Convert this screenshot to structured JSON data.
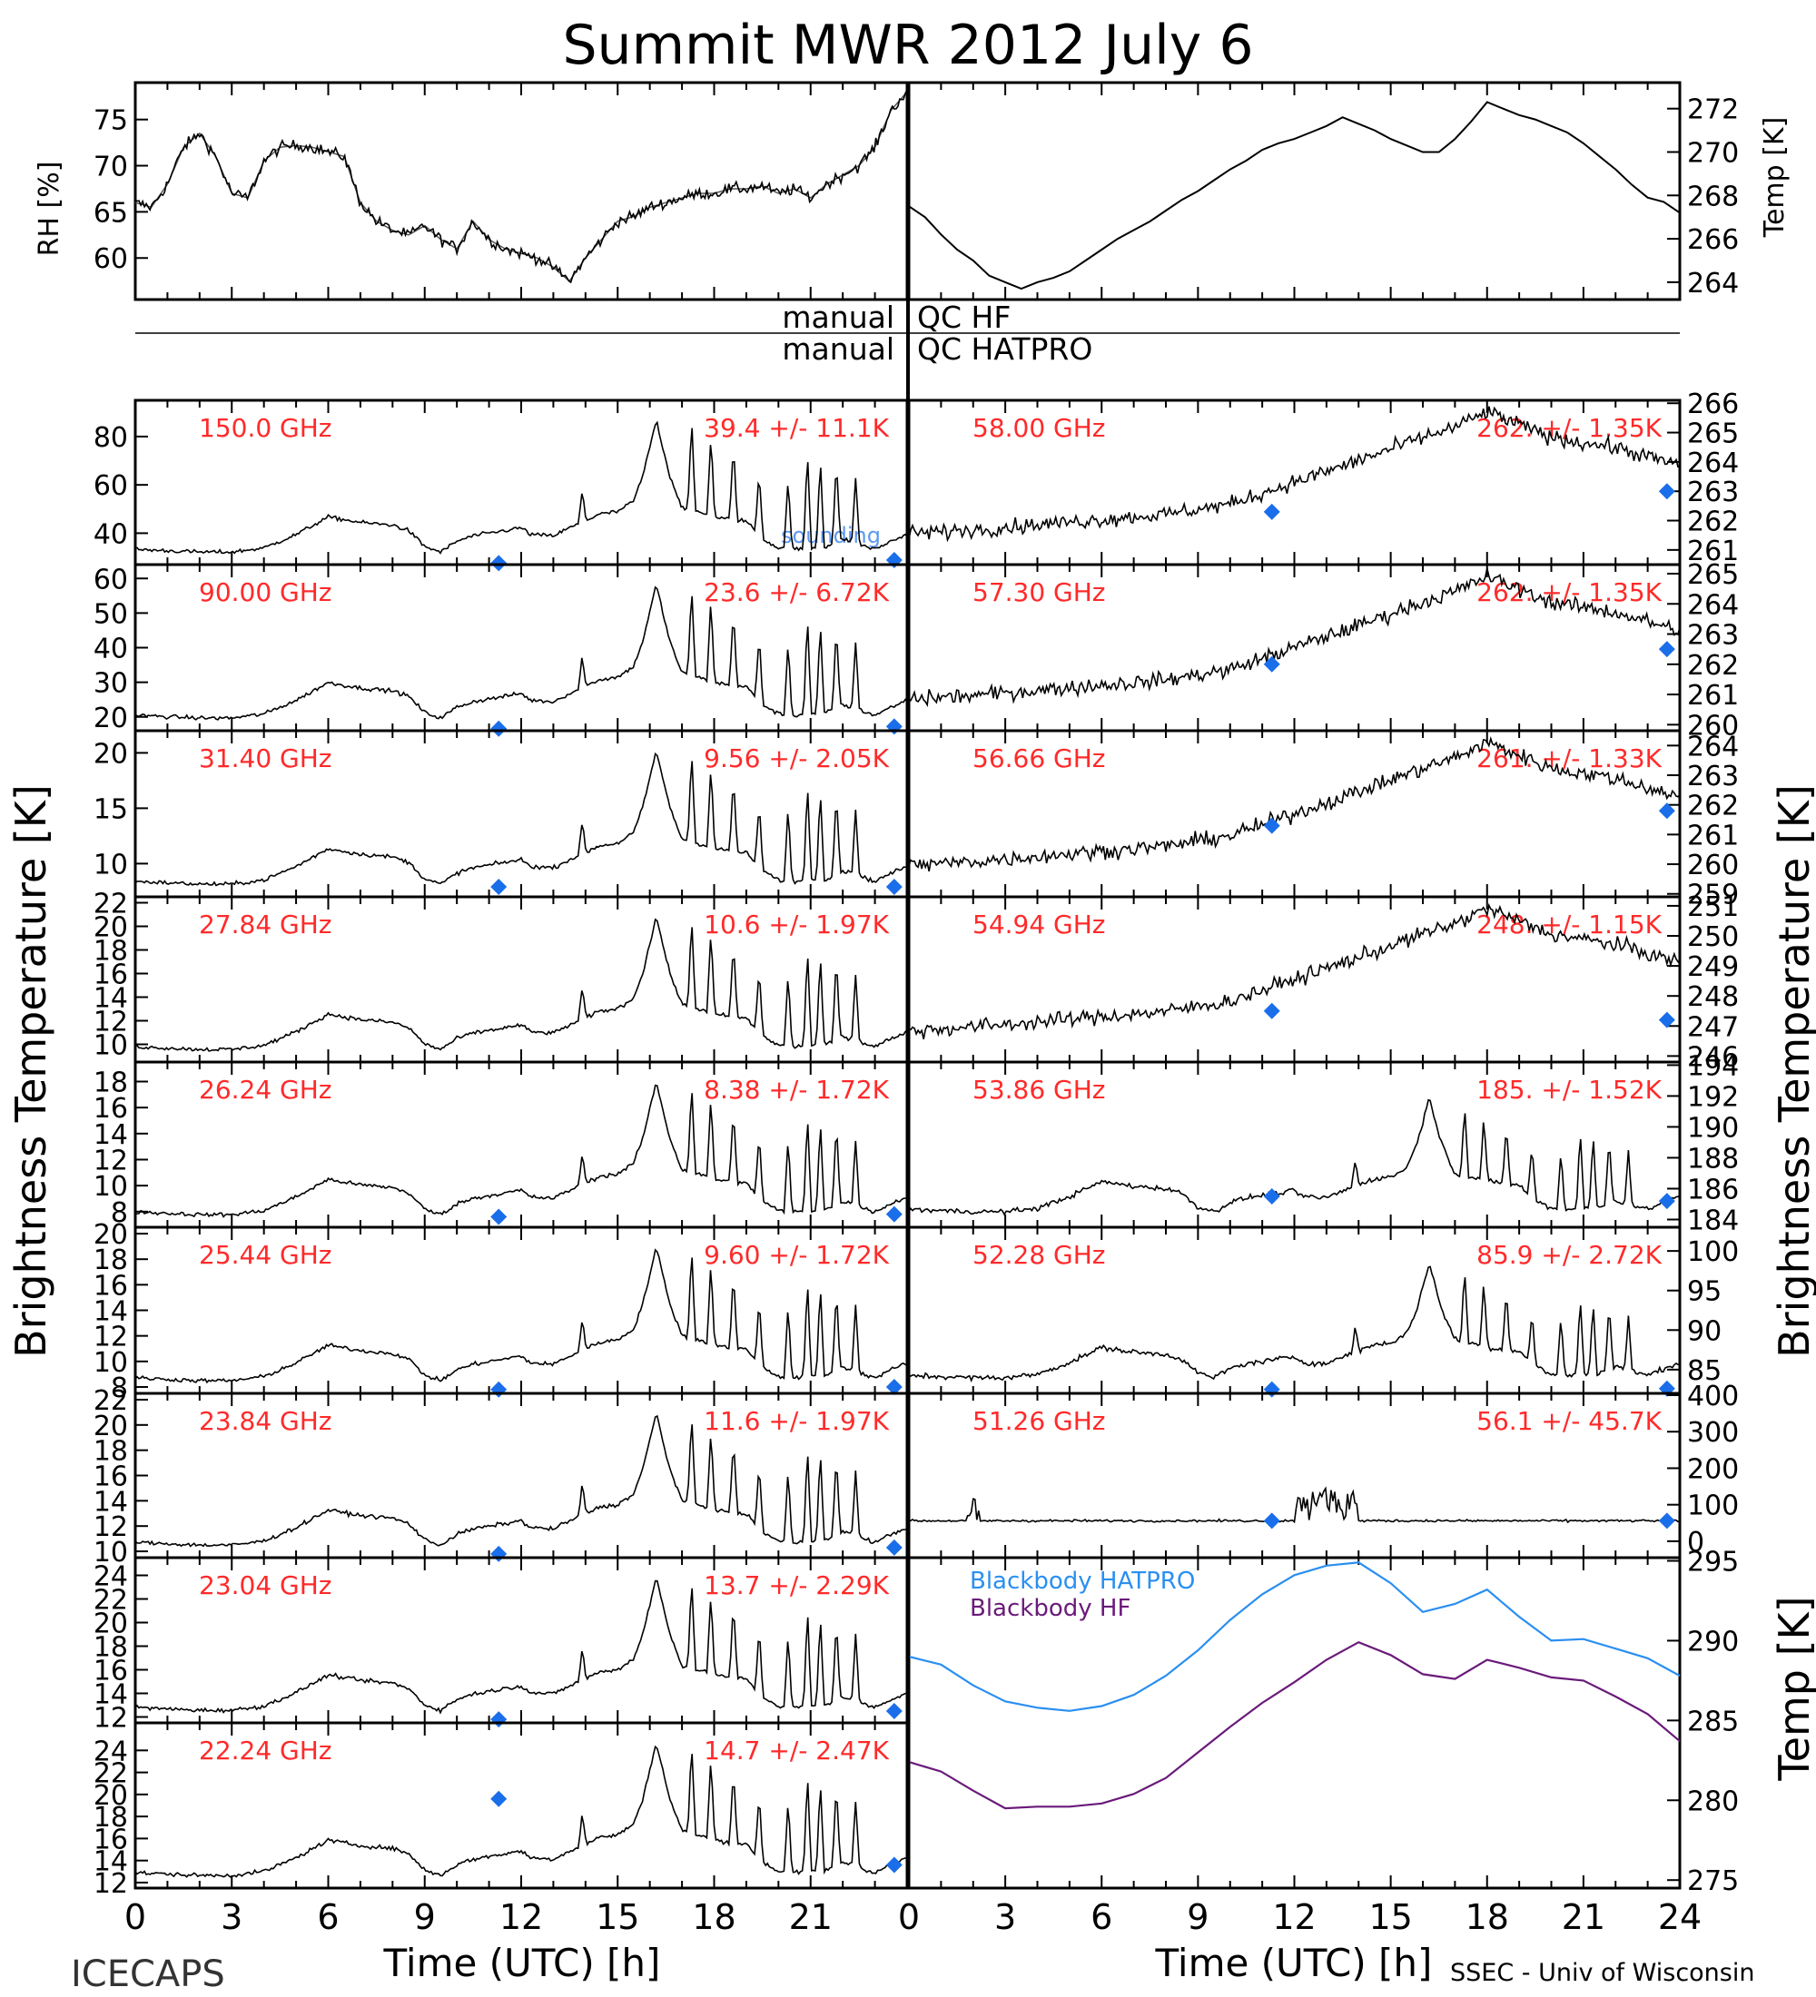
{
  "title": "Summit MWR 2012 July  6",
  "footer": {
    "left": "ICECAPS",
    "right": "SSEC - Univ of Wisconsin"
  },
  "colors": {
    "freq_label": "#ff2a2a",
    "sounding": "#1a6eea",
    "bb_hatpro": "#2a8ff0",
    "bb_hf": "#6a1a7a",
    "trace": "#000000"
  },
  "qc": {
    "hf_left": "manual",
    "hf_right": "QC HF",
    "hatpro_left": "manual",
    "hatpro_right": "QC HATPRO"
  },
  "axes": {
    "rh_label": "RH [%]",
    "temp_label": "Temp [K]",
    "tb_label": "Brightness Temperature [K]",
    "bb_temp_label": "Temp [K]",
    "xlabel": "Time (UTC) [h]",
    "left_xticks": [
      "0",
      "3",
      "6",
      "9",
      "12",
      "15",
      "18",
      "21"
    ],
    "right_xticks": [
      "0",
      "3",
      "6",
      "9",
      "12",
      "15",
      "18",
      "21",
      "24"
    ],
    "sounding_legend": "sounding"
  },
  "chart_data": [
    {
      "type": "line",
      "name_key": "rh",
      "ylabel": "RH [%]",
      "xlim": [
        0,
        24
      ],
      "ylim": [
        55.5,
        79
      ],
      "yticks": [
        "60",
        "65",
        "70",
        "75"
      ],
      "x": [
        0,
        0.5,
        1,
        1.5,
        2,
        2.5,
        3,
        3.5,
        4,
        4.5,
        5,
        5.5,
        6,
        6.5,
        7,
        7.5,
        8,
        8.5,
        9,
        9.5,
        10,
        10.5,
        11,
        11.5,
        12,
        12.5,
        13,
        13.5,
        14,
        14.5,
        15,
        15.5,
        16,
        16.5,
        17,
        17.5,
        18,
        18.5,
        19,
        19.5,
        20,
        20.5,
        21,
        21.5,
        22,
        22.5,
        23,
        23.5,
        24
      ],
      "y": [
        66,
        65.5,
        68,
        72,
        73.5,
        71,
        67,
        66.5,
        70.5,
        72,
        72.2,
        72,
        71.5,
        71,
        66,
        64,
        63,
        62.5,
        63.5,
        62,
        61,
        64,
        62,
        61,
        60.5,
        60,
        59,
        57.5,
        60,
        62,
        64,
        64.5,
        65.5,
        66,
        66.5,
        67,
        67,
        67.5,
        67.5,
        67.8,
        67,
        67.5,
        66.5,
        68,
        69,
        70,
        72,
        76,
        78
      ]
    },
    {
      "type": "line",
      "name_key": "temp",
      "ylabel": "Temp [K]",
      "xlim": [
        0,
        24
      ],
      "ylim": [
        263.2,
        273.2
      ],
      "yticks": [
        "264",
        "266",
        "268",
        "270",
        "272"
      ],
      "x": [
        0,
        0.5,
        1,
        1.5,
        2,
        2.5,
        3,
        3.5,
        4,
        4.5,
        5,
        5.5,
        6,
        6.5,
        7,
        7.5,
        8,
        8.5,
        9,
        9.5,
        10,
        10.5,
        11,
        11.5,
        12,
        12.5,
        13,
        13.5,
        14,
        14.5,
        15,
        15.5,
        16,
        16.5,
        17,
        17.5,
        18,
        18.5,
        19,
        19.5,
        20,
        20.5,
        21,
        21.5,
        22,
        22.5,
        23,
        23.5,
        24
      ],
      "y": [
        267.5,
        267,
        266.2,
        265.5,
        265,
        264.3,
        264,
        263.7,
        264,
        264.2,
        264.5,
        265,
        265.5,
        266,
        266.4,
        266.8,
        267.3,
        267.8,
        268.2,
        268.7,
        269.2,
        269.6,
        270.1,
        270.4,
        270.6,
        270.9,
        271.2,
        271.6,
        271.3,
        271,
        270.6,
        270.3,
        270,
        270,
        270.6,
        271.4,
        272.3,
        272,
        271.7,
        271.5,
        271.2,
        270.9,
        270.4,
        269.8,
        269.2,
        268.5,
        267.9,
        267.7,
        267.2
      ]
    },
    {
      "type": "line",
      "series_label": "150.0 GHz",
      "stat": "39.4 +/- 11.1K",
      "ylim": [
        27,
        95
      ],
      "yticks": [
        "40",
        "60",
        "80"
      ],
      "sounding": [
        [
          11.3,
          27.6
        ],
        [
          23.6,
          28.9
        ]
      ]
    },
    {
      "type": "line",
      "series_label": "90.00 GHz",
      "stat": "23.6 +/- 6.72K",
      "ylim": [
        16,
        64
      ],
      "yticks": [
        "20",
        "30",
        "40",
        "50",
        "60"
      ],
      "sounding": [
        [
          11.3,
          16.6
        ],
        [
          23.6,
          17.2
        ]
      ]
    },
    {
      "type": "line",
      "series_label": "31.40 GHz",
      "stat": "9.56 +/- 2.05K",
      "ylim": [
        7,
        22
      ],
      "yticks": [
        "10",
        "15",
        "20"
      ],
      "sounding": [
        [
          11.3,
          7.9
        ],
        [
          23.6,
          7.9
        ]
      ]
    },
    {
      "type": "line",
      "series_label": "27.84 GHz",
      "stat": "10.6 +/- 1.97K",
      "ylim": [
        8.5,
        22.5
      ],
      "yticks": [
        "10",
        "12",
        "14",
        "16",
        "18",
        "20",
        "22"
      ],
      "sounding": []
    },
    {
      "type": "line",
      "series_label": "26.24 GHz",
      "stat": "8.38 +/- 1.72K",
      "ylim": [
        6.8,
        19.5
      ],
      "yticks": [
        "8",
        "10",
        "12",
        "14",
        "16",
        "18"
      ],
      "sounding": [
        [
          11.3,
          7.6
        ],
        [
          23.6,
          7.8
        ]
      ]
    },
    {
      "type": "line",
      "series_label": "25.44 GHz",
      "stat": "9.60 +/- 1.72K",
      "ylim": [
        7.5,
        20.5
      ],
      "yticks": [
        "8",
        "10",
        "12",
        "14",
        "16",
        "18",
        "20"
      ],
      "sounding": [
        [
          11.3,
          7.8
        ],
        [
          23.6,
          8.0
        ]
      ]
    },
    {
      "type": "line",
      "series_label": "23.84 GHz",
      "stat": "11.6 +/- 1.97K",
      "ylim": [
        9.5,
        22.5
      ],
      "yticks": [
        "10",
        "12",
        "14",
        "16",
        "18",
        "20",
        "22"
      ],
      "sounding": [
        [
          11.3,
          9.8
        ],
        [
          23.6,
          10.3
        ]
      ]
    },
    {
      "type": "line",
      "series_label": "23.04 GHz",
      "stat": "13.7 +/- 2.29K",
      "ylim": [
        11.5,
        25.5
      ],
      "yticks": [
        "12",
        "14",
        "16",
        "18",
        "20",
        "22",
        "24"
      ],
      "sounding": [
        [
          11.3,
          11.8
        ],
        [
          23.6,
          12.5
        ]
      ]
    },
    {
      "type": "line",
      "series_label": "22.24 GHz",
      "stat": "14.7 +/- 2.47K",
      "ylim": [
        11.5,
        26.5
      ],
      "yticks": [
        "12",
        "14",
        "16",
        "18",
        "20",
        "22",
        "24"
      ],
      "sounding": [
        [
          11.3,
          19.6
        ],
        [
          23.6,
          13.6
        ]
      ]
    },
    {
      "type": "line",
      "series_label": "58.00 GHz",
      "stat": "262. +/- 1.35K",
      "ylim": [
        260.5,
        266.1
      ],
      "yticks": [
        "261",
        "262",
        "263",
        "264",
        "265",
        "266"
      ],
      "sounding": [
        [
          11.3,
          262.3
        ],
        [
          23.6,
          263.0
        ]
      ]
    },
    {
      "type": "line",
      "series_label": "57.30 GHz",
      "stat": "262. +/- 1.35K",
      "ylim": [
        259.8,
        265.3
      ],
      "yticks": [
        "260",
        "261",
        "262",
        "263",
        "264",
        "265"
      ],
      "sounding": [
        [
          11.3,
          262.0
        ],
        [
          23.6,
          262.5
        ]
      ]
    },
    {
      "type": "line",
      "series_label": "56.66 GHz",
      "stat": "261. +/- 1.33K",
      "ylim": [
        258.9,
        264.5
      ],
      "yticks": [
        "259",
        "260",
        "261",
        "262",
        "263",
        "264"
      ],
      "sounding": [
        [
          11.3,
          261.3
        ],
        [
          23.6,
          261.8
        ]
      ]
    },
    {
      "type": "line",
      "series_label": "54.94 GHz",
      "stat": "248. +/- 1.15K",
      "ylim": [
        245.8,
        251.3
      ],
      "yticks": [
        "246",
        "247",
        "248",
        "249",
        "250",
        "251"
      ],
      "sounding": [
        [
          11.3,
          247.5
        ],
        [
          23.6,
          247.2
        ]
      ]
    },
    {
      "type": "line",
      "series_label": "53.86 GHz",
      "stat": "185. +/- 1.52K",
      "ylim": [
        183.5,
        194.2
      ],
      "yticks": [
        "184",
        "186",
        "188",
        "190",
        "192",
        "194"
      ],
      "sounding": [
        [
          11.3,
          185.5
        ],
        [
          23.6,
          185.2
        ]
      ]
    },
    {
      "type": "line",
      "series_label": "52.28 GHz",
      "stat": "85.9 +/- 2.72K",
      "ylim": [
        82,
        103
      ],
      "yticks": [
        "85",
        "90",
        "95",
        "100"
      ],
      "sounding": [
        [
          11.3,
          82.5
        ],
        [
          23.6,
          82.6
        ]
      ]
    },
    {
      "type": "line",
      "series_label": "51.26 GHz",
      "stat": "56.1 +/- 45.7K",
      "ylim": [
        -45,
        405
      ],
      "yticks": [
        "0",
        "100",
        "200",
        "300",
        "400"
      ],
      "sounding": [
        [
          11.3,
          56
        ],
        [
          23.6,
          56
        ]
      ]
    },
    {
      "type": "line",
      "name_key": "blackbody",
      "ylabel": "Temp [K]",
      "xlim": [
        0,
        24
      ],
      "ylim": [
        274.5,
        295.2
      ],
      "yticks": [
        "275",
        "280",
        "285",
        "290",
        "295"
      ],
      "series": [
        {
          "name": "Blackbody HATPRO",
          "x": [
            0,
            1,
            2,
            3,
            4,
            5,
            6,
            7,
            8,
            9,
            10,
            11,
            12,
            13,
            14,
            15,
            16,
            17,
            18,
            19,
            20,
            21,
            22,
            23,
            24
          ],
          "y": [
            289,
            288.5,
            287.2,
            286.2,
            285.8,
            285.6,
            285.9,
            286.6,
            287.8,
            289.4,
            291.3,
            292.9,
            294.1,
            294.7,
            294.9,
            293.6,
            291.8,
            292.3,
            293.2,
            291.5,
            290,
            290.1,
            289.5,
            288.9,
            287.8
          ]
        },
        {
          "name": "Blackbody HF",
          "x": [
            0,
            1,
            2,
            3,
            4,
            5,
            6,
            7,
            8,
            9,
            10,
            11,
            12,
            13,
            14,
            15,
            16,
            17,
            18,
            19,
            20,
            21,
            22,
            23,
            24
          ],
          "y": [
            282.4,
            281.8,
            280.6,
            279.5,
            279.6,
            279.6,
            279.8,
            280.4,
            281.4,
            283,
            284.6,
            286.1,
            287.4,
            288.8,
            289.9,
            289.1,
            287.9,
            287.6,
            288.8,
            288.3,
            287.7,
            287.5,
            286.5,
            285.4,
            283.7
          ]
        }
      ]
    }
  ]
}
